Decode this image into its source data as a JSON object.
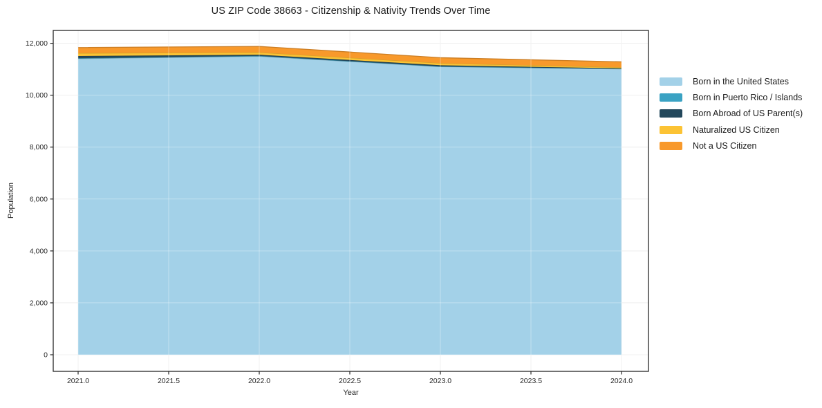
{
  "chart_data": {
    "type": "area",
    "stacked": true,
    "title": "US ZIP Code 38663 - Citizenship & Nativity Trends Over Time",
    "xlabel": "Year",
    "ylabel": "Population",
    "grid": true,
    "legend_position": "right",
    "x": [
      2021,
      2022,
      2023,
      2024
    ],
    "series": [
      {
        "name": "Born in the United States",
        "color": "#a3d1e8",
        "values": [
          11410,
          11500,
          11100,
          11010
        ]
      },
      {
        "name": "Born in Puerto Rico / Islands",
        "color": "#3aa2c3",
        "values": [
          15,
          15,
          10,
          10
        ]
      },
      {
        "name": "Born Abroad of US Parent(s)",
        "color": "#23485c",
        "values": [
          85,
          45,
          45,
          15
        ]
      },
      {
        "name": "Naturalized US Citizen",
        "color": "#fcc334",
        "values": [
          110,
          90,
          80,
          40
        ]
      },
      {
        "name": "Not a US Citizen",
        "color": "#f8992b",
        "values": [
          215,
          230,
          210,
          210
        ]
      }
    ],
    "totals": [
      11835,
      11880,
      11445,
      11285
    ],
    "xticks": {
      "values": [
        2021.0,
        2021.5,
        2022.0,
        2022.5,
        2023.0,
        2023.5,
        2024.0
      ],
      "labels": [
        "2021.0",
        "2021.5",
        "2022.0",
        "2022.5",
        "2023.0",
        "2023.5",
        "2024.0"
      ]
    },
    "yticks": {
      "values": [
        0,
        2000,
        4000,
        6000,
        8000,
        10000,
        12000
      ],
      "labels": [
        "0",
        "2,000",
        "4,000",
        "6,000",
        "8,000",
        "10,000",
        "12,000"
      ]
    },
    "ylim": [
      0,
      12000
    ],
    "colors": {
      "grid": "#e8e8e8",
      "spine": "#262626",
      "tick_label": "#262626",
      "title_text": "#1b1b1b"
    }
  }
}
